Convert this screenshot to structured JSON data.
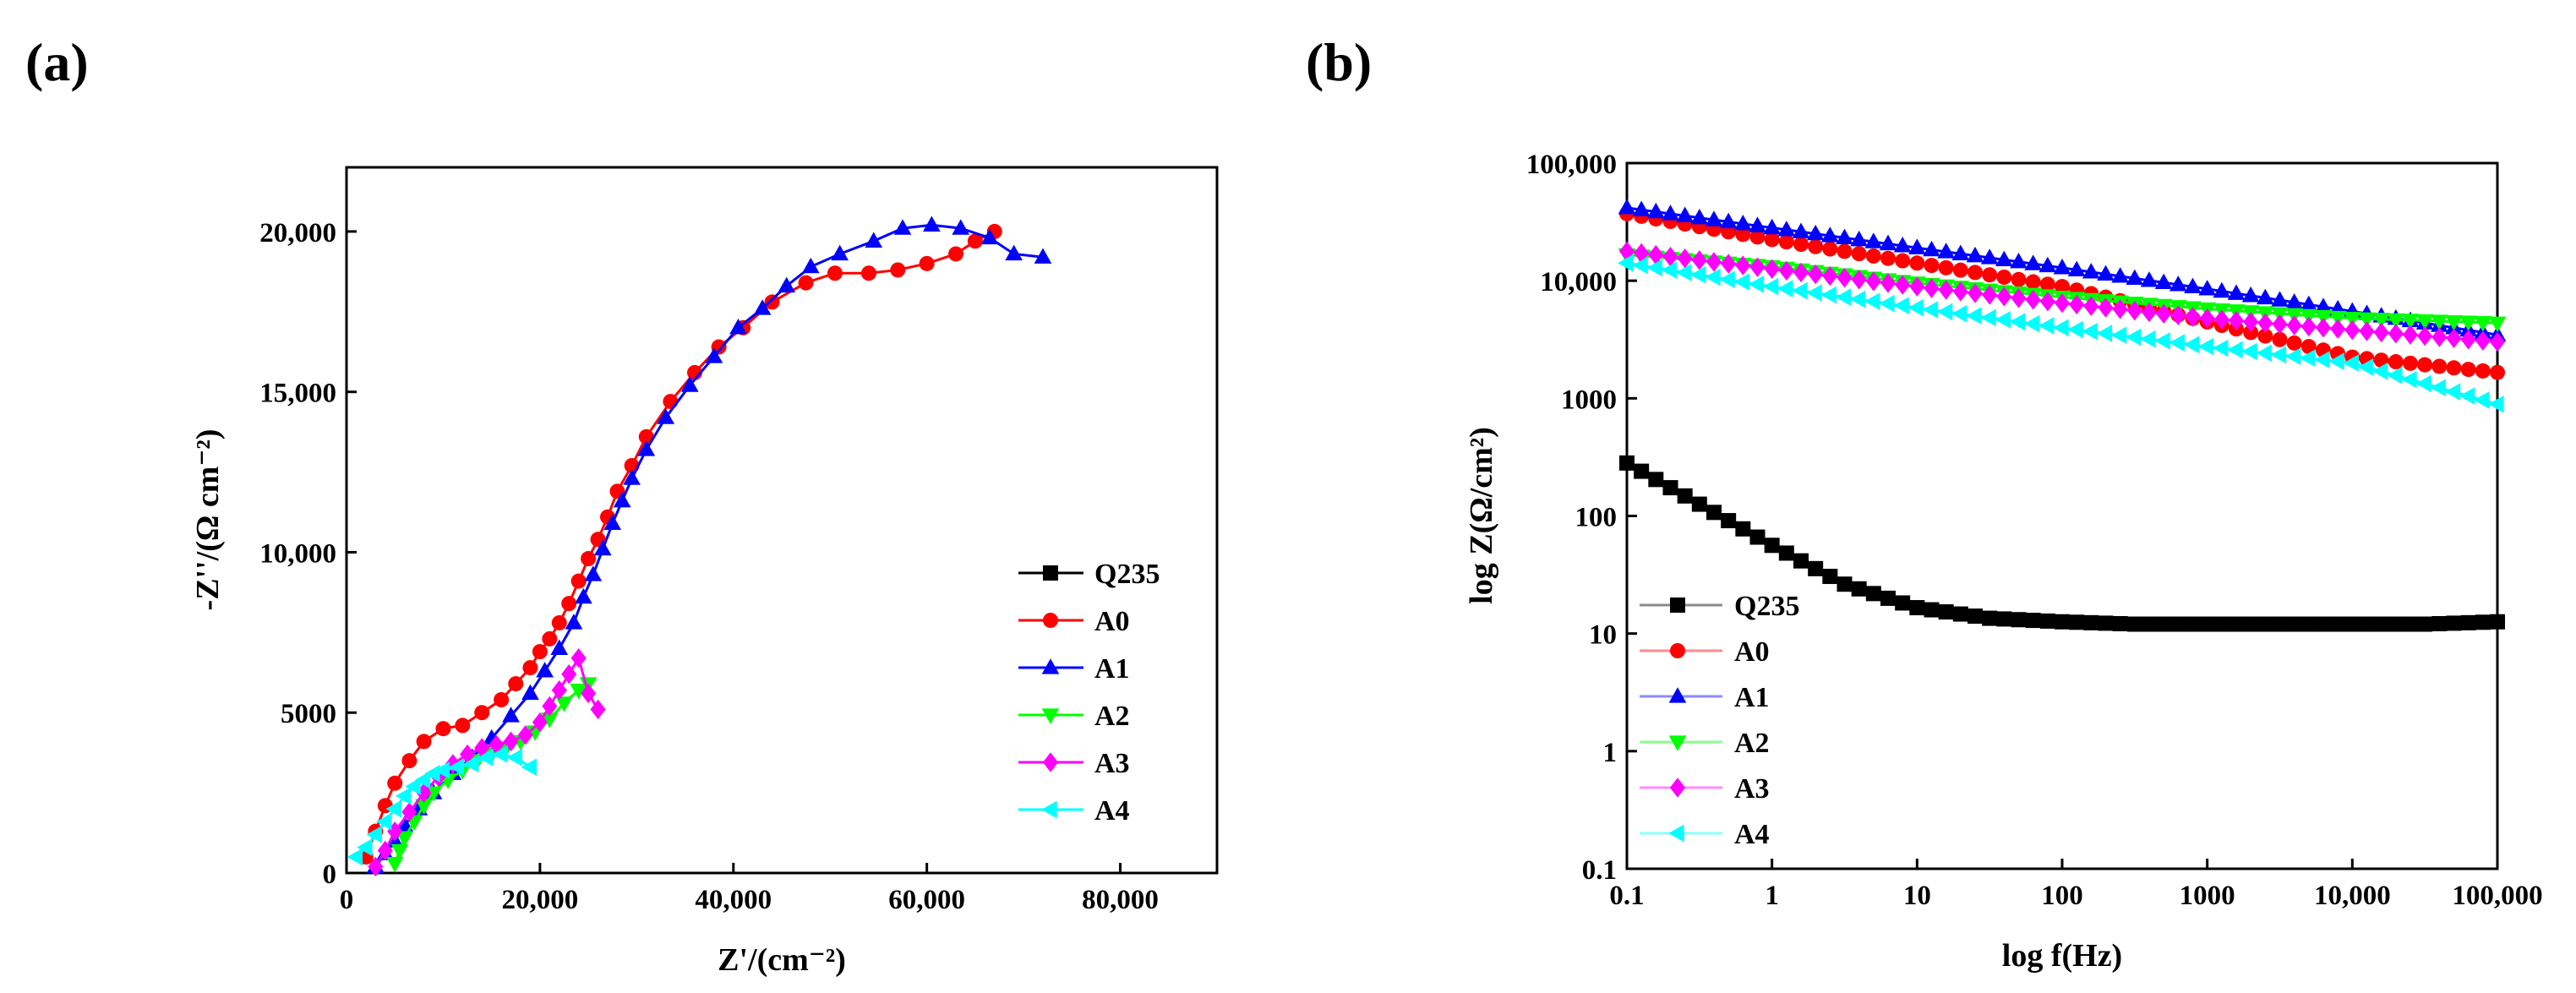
{
  "chart_data": [
    {
      "panel": "(a)",
      "type": "scatter",
      "xlabel": "Z'/(cm⁻²)",
      "ylabel": "-Z''/(Ω cm⁻²)",
      "xlim": [
        0,
        90000
      ],
      "ylim": [
        0,
        22000
      ],
      "xticks": [
        0,
        20000,
        40000,
        60000,
        80000
      ],
      "xtick_labels": [
        "0",
        "20,000",
        "40,000",
        "60,000",
        "80,000"
      ],
      "yticks": [
        0,
        5000,
        10000,
        15000,
        20000
      ],
      "ytick_labels": [
        "0",
        "5000",
        "10,000",
        "15,000",
        "20,000"
      ],
      "legend_position": "bottom-right",
      "series": [
        {
          "name": "Q235",
          "color": "#000000",
          "marker": "square",
          "line": true,
          "x": [],
          "y": []
        },
        {
          "name": "A0",
          "color": "#ff0000",
          "marker": "circle",
          "line": true,
          "x": [
            2000,
            3000,
            4000,
            5000,
            6500,
            8000,
            10000,
            12000,
            14000,
            16000,
            17500,
            19000,
            20000,
            21000,
            22000,
            23000,
            24000,
            25000,
            26000,
            27000,
            28000,
            29500,
            31000,
            33500,
            36000,
            38500,
            41000,
            44000,
            47500,
            50500,
            54000,
            57000,
            60000,
            63000,
            65000,
            67000
          ],
          "y": [
            500,
            1300,
            2100,
            2800,
            3500,
            4100,
            4500,
            4600,
            5000,
            5400,
            5900,
            6400,
            6900,
            7300,
            7800,
            8400,
            9100,
            9800,
            10400,
            11100,
            11900,
            12700,
            13600,
            14700,
            15600,
            16400,
            17000,
            17800,
            18400,
            18700,
            18700,
            18800,
            19000,
            19300,
            19700,
            20000
          ]
        },
        {
          "name": "A1",
          "color": "#0000ff",
          "marker": "triangle-up",
          "line": true,
          "x": [
            3000,
            4000,
            5000,
            6000,
            7500,
            9000,
            11000,
            13000,
            15000,
            17000,
            19000,
            20500,
            22000,
            23500,
            24500,
            25500,
            26500,
            27500,
            28500,
            29500,
            31000,
            33000,
            35500,
            38000,
            40500,
            43000,
            45500,
            48000,
            51000,
            54500,
            57500,
            60500,
            63500,
            66500,
            69000,
            72000
          ],
          "y": [
            200,
            600,
            1000,
            1500,
            2000,
            2500,
            3100,
            3600,
            4200,
            4900,
            5600,
            6300,
            7000,
            7800,
            8600,
            9300,
            10100,
            10900,
            11600,
            12300,
            13200,
            14200,
            15200,
            16100,
            17000,
            17600,
            18300,
            18900,
            19300,
            19700,
            20100,
            20200,
            20100,
            19800,
            19300,
            19200
          ]
        },
        {
          "name": "A2",
          "color": "#00ff00",
          "marker": "triangle-down",
          "line": true,
          "x": [
            5000,
            5500,
            6000,
            7000,
            8000,
            9000,
            10500,
            12000,
            13500,
            15000,
            16500,
            18000,
            19500,
            21000,
            22500,
            24000,
            25000
          ],
          "y": [
            300,
            700,
            1100,
            1600,
            2100,
            2500,
            2900,
            3200,
            3500,
            3700,
            3900,
            4100,
            4400,
            4800,
            5300,
            5700,
            5900
          ]
        },
        {
          "name": "A3",
          "color": "#ff00ff",
          "marker": "diamond",
          "line": true,
          "x": [
            3000,
            4000,
            5000,
            6500,
            8000,
            9500,
            11000,
            12500,
            14000,
            15500,
            17000,
            18500,
            20000,
            21000,
            22000,
            23000,
            24000,
            25000,
            26000
          ],
          "y": [
            200,
            700,
            1300,
            1900,
            2500,
            3000,
            3400,
            3700,
            3900,
            4000,
            4100,
            4300,
            4700,
            5200,
            5700,
            6200,
            6700,
            5600,
            5100
          ]
        },
        {
          "name": "A4",
          "color": "#00ffff",
          "marker": "triangle-left",
          "line": true,
          "x": [
            1000,
            2000,
            3000,
            4000,
            5000,
            6000,
            7000,
            8000,
            9000,
            10000,
            11500,
            13000,
            14500,
            16000,
            17500,
            19000
          ],
          "y": [
            500,
            800,
            1200,
            1600,
            2000,
            2400,
            2700,
            2900,
            3100,
            3200,
            3300,
            3400,
            3600,
            3700,
            3600,
            3300
          ]
        }
      ]
    },
    {
      "panel": "(b)",
      "type": "scatter",
      "xscale": "log",
      "yscale": "log",
      "xlabel": "log f(Hz)",
      "ylabel": "log Z(Ω/cm²)",
      "xlim": [
        0.1,
        100000
      ],
      "ylim": [
        0.1,
        100000
      ],
      "xticks": [
        0.1,
        1,
        10,
        100,
        1000,
        10000,
        100000
      ],
      "xtick_labels": [
        "0.1",
        "1",
        "10",
        "100",
        "1000",
        "10,000",
        "100,000"
      ],
      "yticks": [
        0.1,
        1,
        10,
        100,
        1000,
        10000,
        100000
      ],
      "ytick_labels": [
        "0.1",
        "1",
        "10",
        "100",
        "1000",
        "10,000",
        "100,000"
      ],
      "legend_position": "bottom-left",
      "series": [
        {
          "name": "Q235",
          "color": "#000000",
          "marker": "square",
          "line": true,
          "log10_f_range": [
            -1,
            5
          ],
          "log10_Z": [
            2.45,
            2.1,
            1.75,
            1.42,
            1.22,
            1.13,
            1.1,
            1.08,
            1.08,
            1.08,
            1.08,
            1.08,
            1.1
          ]
        },
        {
          "name": "A0",
          "color": "#ff0000",
          "marker": "circle",
          "line": true,
          "log10_f_range": [
            -1,
            5
          ],
          "log10_Z": [
            4.57,
            4.35,
            4.15,
            3.95,
            3.65,
            3.35,
            3.22
          ]
        },
        {
          "name": "A1",
          "color": "#0000ff",
          "marker": "triangle-up",
          "line": true,
          "log10_f_range": [
            -1,
            5
          ],
          "log10_Z": [
            4.62,
            4.45,
            4.28,
            4.11,
            3.93,
            3.74,
            3.54
          ]
        },
        {
          "name": "A2",
          "color": "#00ff00",
          "marker": "triangle-down",
          "line": true,
          "log10_f_range": [
            -1,
            5
          ],
          "log10_Z": [
            4.22,
            4.12,
            3.98,
            3.86,
            3.76,
            3.68,
            3.64
          ]
        },
        {
          "name": "A3",
          "color": "#ff00ff",
          "marker": "diamond",
          "line": true,
          "log10_f_range": [
            -1,
            5
          ],
          "log10_Z": [
            4.25,
            4.1,
            3.95,
            3.81,
            3.68,
            3.58,
            3.48
          ]
        },
        {
          "name": "A4",
          "color": "#00ffff",
          "marker": "triangle-left",
          "line": true,
          "log10_f_range": [
            -1,
            5
          ],
          "log10_Z": [
            4.15,
            3.95,
            3.77,
            3.6,
            3.44,
            3.3,
            2.95
          ]
        }
      ]
    }
  ]
}
